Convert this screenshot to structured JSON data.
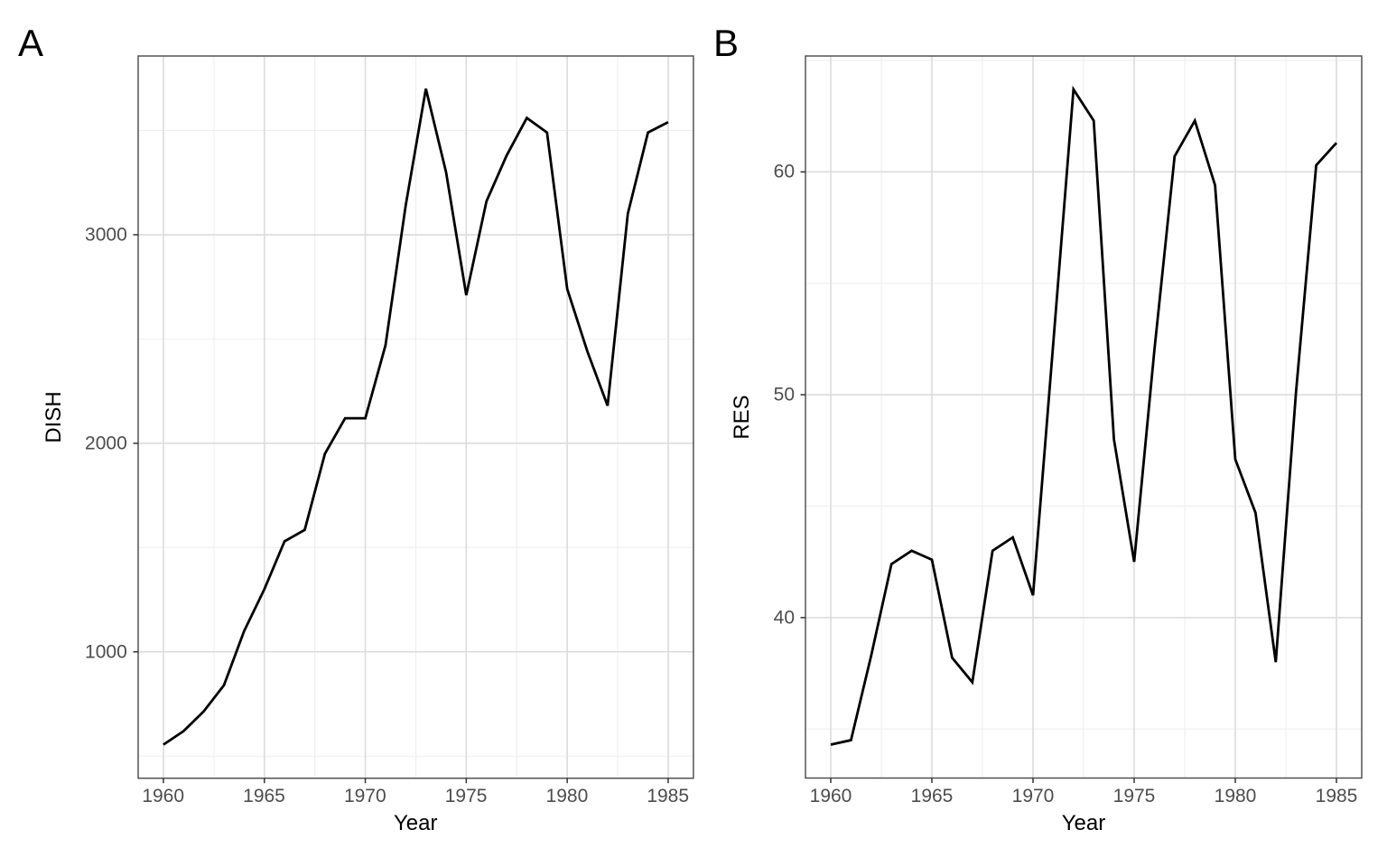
{
  "figure": {
    "background": "#ffffff"
  },
  "styles": {
    "line_color": "#000000",
    "line_width": 2.8,
    "major_grid_color": "#dcdcdc",
    "minor_grid_color": "#efefef",
    "panel_border_color": "#474747",
    "panel_background": "#ffffff",
    "tick_mark_color": "#333333",
    "tick_label_color": "#4d4d4d",
    "axis_title_color": "#000000"
  },
  "chart_data": [
    {
      "type": "line",
      "tag": "A",
      "xlabel": "Year",
      "ylabel": "DISH",
      "legend": "none",
      "grid": "on",
      "x_ticks": [
        1960,
        1965,
        1970,
        1975,
        1980,
        1985
      ],
      "y_ticks": [
        1000,
        2000,
        3000
      ],
      "xlim": [
        1958.75,
        1986.25
      ],
      "ylim": [
        394,
        3857
      ],
      "x": [
        1960,
        1961,
        1962,
        1963,
        1964,
        1965,
        1966,
        1967,
        1968,
        1969,
        1970,
        1971,
        1972,
        1973,
        1974,
        1975,
        1976,
        1977,
        1978,
        1979,
        1980,
        1981,
        1982,
        1983,
        1984,
        1985
      ],
      "y": [
        555,
        620,
        715,
        840,
        1100,
        1300,
        1530,
        1585,
        1950,
        2120,
        2120,
        2470,
        3140,
        3700,
        3300,
        2710,
        3160,
        3380,
        3560,
        3490,
        2740,
        2440,
        2180,
        3100,
        3490,
        3540
      ]
    },
    {
      "type": "line",
      "tag": "B",
      "xlabel": "Year",
      "ylabel": "RES",
      "legend": "none",
      "grid": "on",
      "x_ticks": [
        1960,
        1965,
        1970,
        1975,
        1980,
        1985
      ],
      "y_ticks": [
        40,
        50,
        60
      ],
      "xlim": [
        1958.75,
        1986.25
      ],
      "ylim": [
        32.8,
        65.2
      ],
      "x": [
        1960,
        1961,
        1962,
        1963,
        1964,
        1965,
        1966,
        1967,
        1968,
        1969,
        1970,
        1971,
        1972,
        1973,
        1974,
        1975,
        1976,
        1977,
        1978,
        1979,
        1980,
        1981,
        1982,
        1983,
        1984,
        1985
      ],
      "y": [
        34.3,
        34.5,
        38.3,
        42.4,
        43.0,
        42.6,
        38.2,
        37.1,
        43.0,
        43.6,
        41.0,
        52.3,
        63.7,
        62.3,
        48.0,
        42.5,
        52.0,
        60.7,
        62.3,
        59.4,
        47.1,
        44.7,
        38.0,
        50.1,
        60.3,
        61.3
      ]
    }
  ]
}
